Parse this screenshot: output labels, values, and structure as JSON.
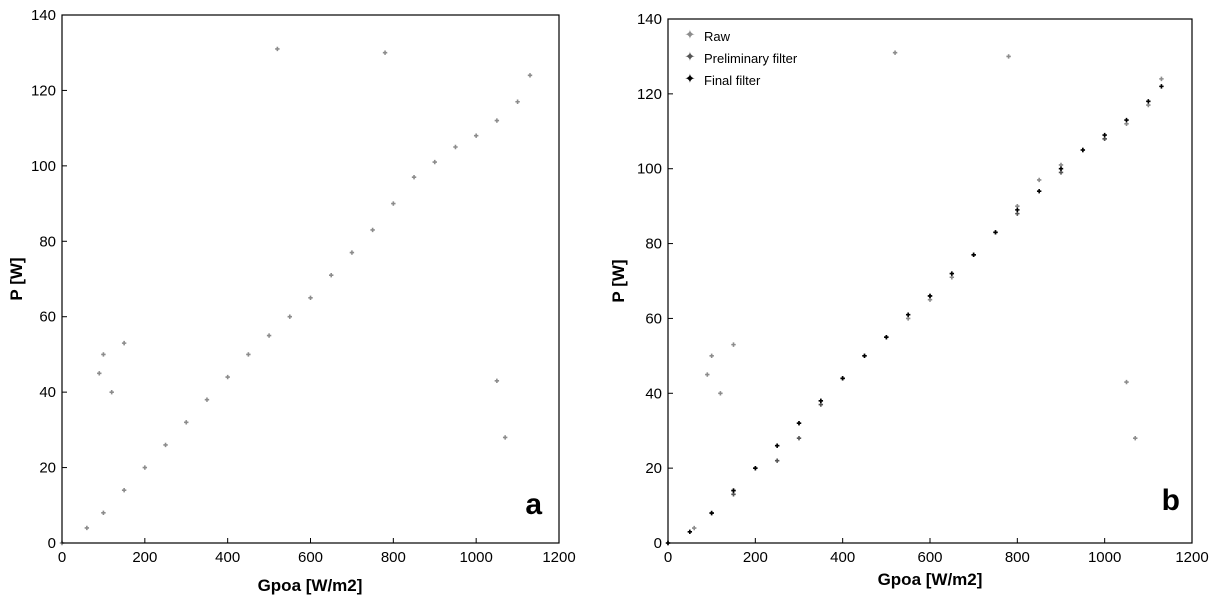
{
  "chart_data": [
    {
      "type": "scatter",
      "title": "",
      "panel_label": "a",
      "xlabel": "Gpoa [W/m2]",
      "ylabel": "P [W]",
      "xlim": [
        0,
        1200
      ],
      "ylim": [
        0,
        140
      ],
      "xticks": [
        "0",
        "200",
        "400",
        "600",
        "800",
        "1000",
        "1200"
      ],
      "yticks": [
        "0",
        "20",
        "40",
        "60",
        "80",
        "100",
        "120",
        "140"
      ],
      "grid": false,
      "legend": null,
      "series": [
        {
          "color": "#8c8c8c",
          "x": [
            0,
            60,
            100,
            150,
            200,
            250,
            300,
            350,
            400,
            450,
            500,
            550,
            600,
            650,
            700,
            750,
            800,
            850,
            900,
            950,
            1000,
            1050,
            1100,
            1130,
            90,
            100,
            120,
            150,
            520,
            780,
            1050,
            1070
          ],
          "y": [
            0,
            4,
            8,
            14,
            20,
            26,
            32,
            38,
            44,
            50,
            55,
            60,
            65,
            71,
            77,
            83,
            90,
            97,
            101,
            105,
            108,
            112,
            117,
            124,
            45,
            50,
            40,
            53,
            131,
            130,
            43,
            28
          ]
        }
      ]
    },
    {
      "type": "scatter",
      "title": "",
      "panel_label": "b",
      "xlabel": "Gpoa [W/m2]",
      "ylabel": "P [W]",
      "xlim": [
        0,
        1200
      ],
      "ylim": [
        0,
        140
      ],
      "xticks": [
        "0",
        "200",
        "400",
        "600",
        "800",
        "1000",
        "1200"
      ],
      "yticks": [
        "0",
        "20",
        "40",
        "60",
        "80",
        "100",
        "120",
        "140"
      ],
      "grid": false,
      "legend": "top-left",
      "series": [
        {
          "name": "Raw",
          "color": "#8c8c8c",
          "x": [
            0,
            60,
            100,
            150,
            200,
            250,
            300,
            350,
            400,
            450,
            500,
            550,
            600,
            650,
            700,
            750,
            800,
            850,
            900,
            950,
            1000,
            1050,
            1100,
            1130,
            90,
            100,
            120,
            150,
            520,
            780,
            1050,
            1070
          ],
          "y": [
            0,
            4,
            8,
            14,
            20,
            26,
            32,
            38,
            44,
            50,
            55,
            60,
            65,
            71,
            77,
            83,
            90,
            97,
            101,
            105,
            108,
            112,
            117,
            124,
            45,
            50,
            40,
            53,
            131,
            130,
            43,
            28
          ]
        },
        {
          "name": "Preliminary filter",
          "color": "#555555",
          "x": [
            100,
            150,
            200,
            250,
            300,
            350,
            400,
            500,
            600,
            700,
            800,
            900,
            1000
          ],
          "y": [
            8,
            13,
            20,
            22,
            28,
            37,
            44,
            55,
            66,
            77,
            88,
            99,
            108
          ]
        },
        {
          "name": "Final filter",
          "color": "#000000",
          "x": [
            0,
            50,
            100,
            150,
            200,
            250,
            300,
            350,
            400,
            450,
            500,
            550,
            600,
            650,
            700,
            750,
            800,
            850,
            900,
            950,
            1000,
            1050,
            1100,
            1130
          ],
          "y": [
            0,
            3,
            8,
            14,
            20,
            26,
            32,
            38,
            44,
            50,
            55,
            61,
            66,
            72,
            77,
            83,
            89,
            94,
            100,
            105,
            109,
            113,
            118,
            122
          ]
        }
      ]
    }
  ]
}
